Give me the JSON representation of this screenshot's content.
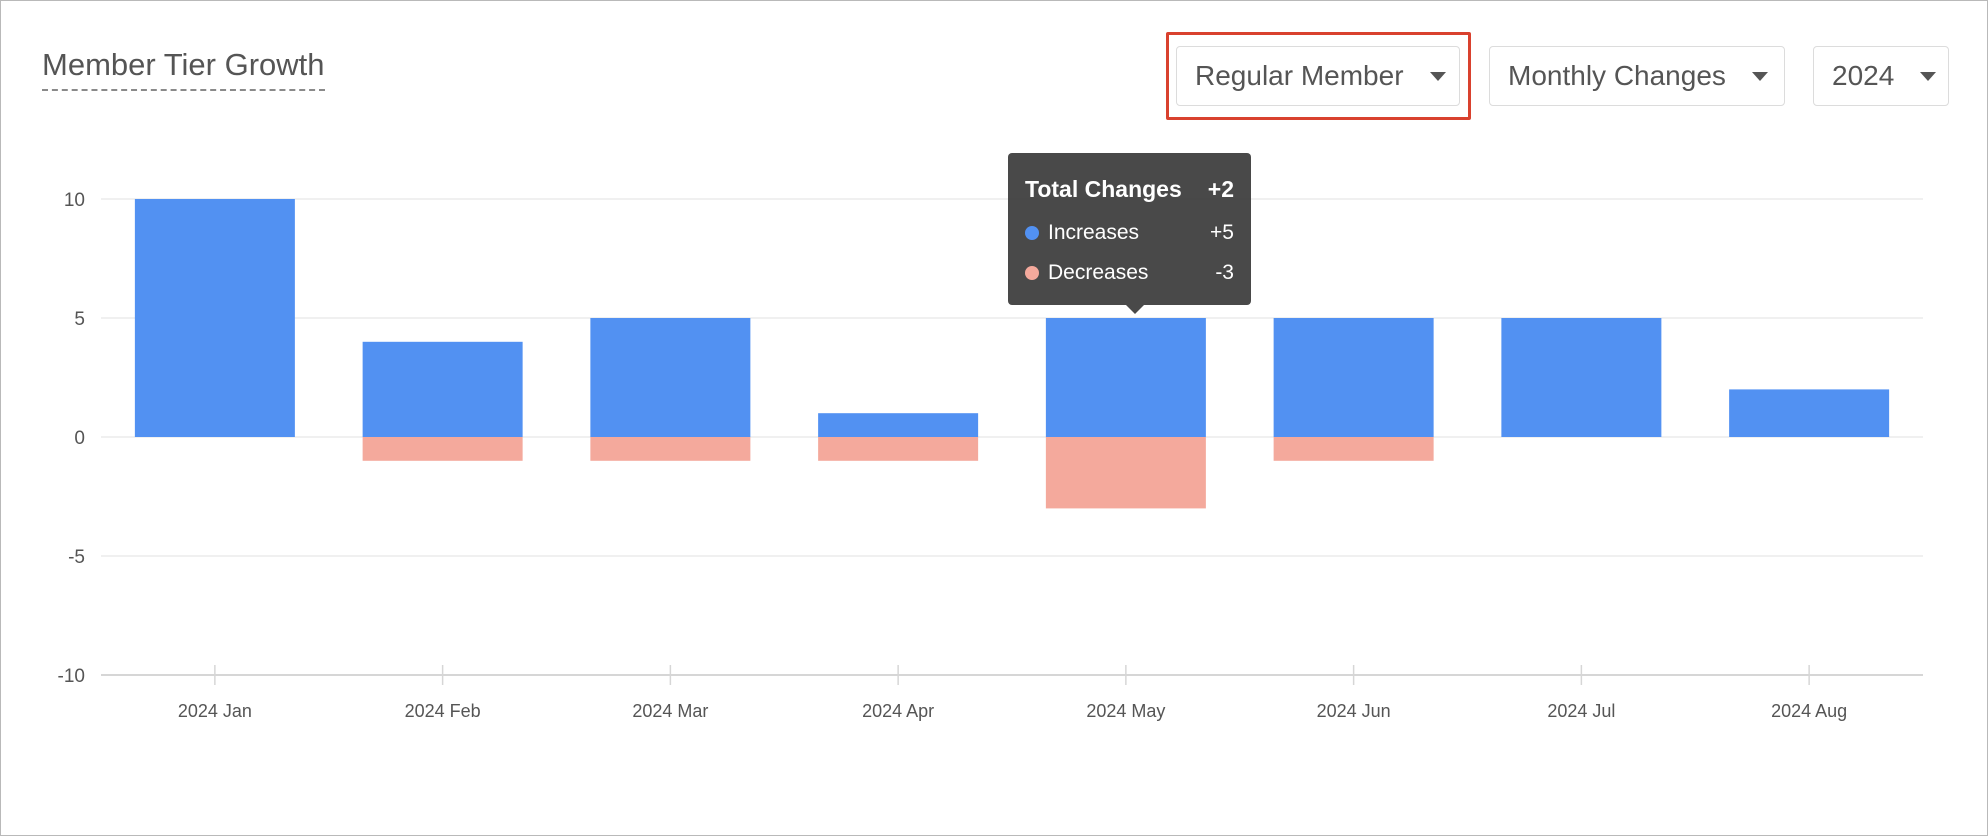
{
  "header": {
    "title": "Member Tier Growth"
  },
  "filters": {
    "tier": "Regular Member",
    "mode": "Monthly Changes",
    "year": "2024"
  },
  "tooltip": {
    "title": "Total Changes",
    "total": "+2",
    "increases_label": "Increases",
    "increases_value": "+5",
    "decreases_label": "Decreases",
    "decreases_value": "-3"
  },
  "colors": {
    "increase": "#5291f2",
    "decrease": "#f4a99c",
    "grid": "#e6e6e6",
    "tick": "#555555",
    "highlight": "#d9412e"
  },
  "chart_data": {
    "type": "bar",
    "title": "Member Tier Growth",
    "xlabel": "",
    "ylabel": "",
    "ylim": [
      -10,
      10
    ],
    "yticks": [
      10,
      5,
      0,
      -5,
      -10
    ],
    "grid": true,
    "categories": [
      "2024 Jan",
      "2024 Feb",
      "2024 Mar",
      "2024 Apr",
      "2024 May",
      "2024 Jun",
      "2024 Jul",
      "2024 Aug"
    ],
    "series": [
      {
        "name": "Increases",
        "values": [
          10,
          4,
          5,
          1,
          5,
          5,
          5,
          2
        ]
      },
      {
        "name": "Decreases",
        "values": [
          0,
          -1,
          -1,
          -1,
          -3,
          -1,
          0,
          0
        ]
      }
    ],
    "stacked": true
  }
}
